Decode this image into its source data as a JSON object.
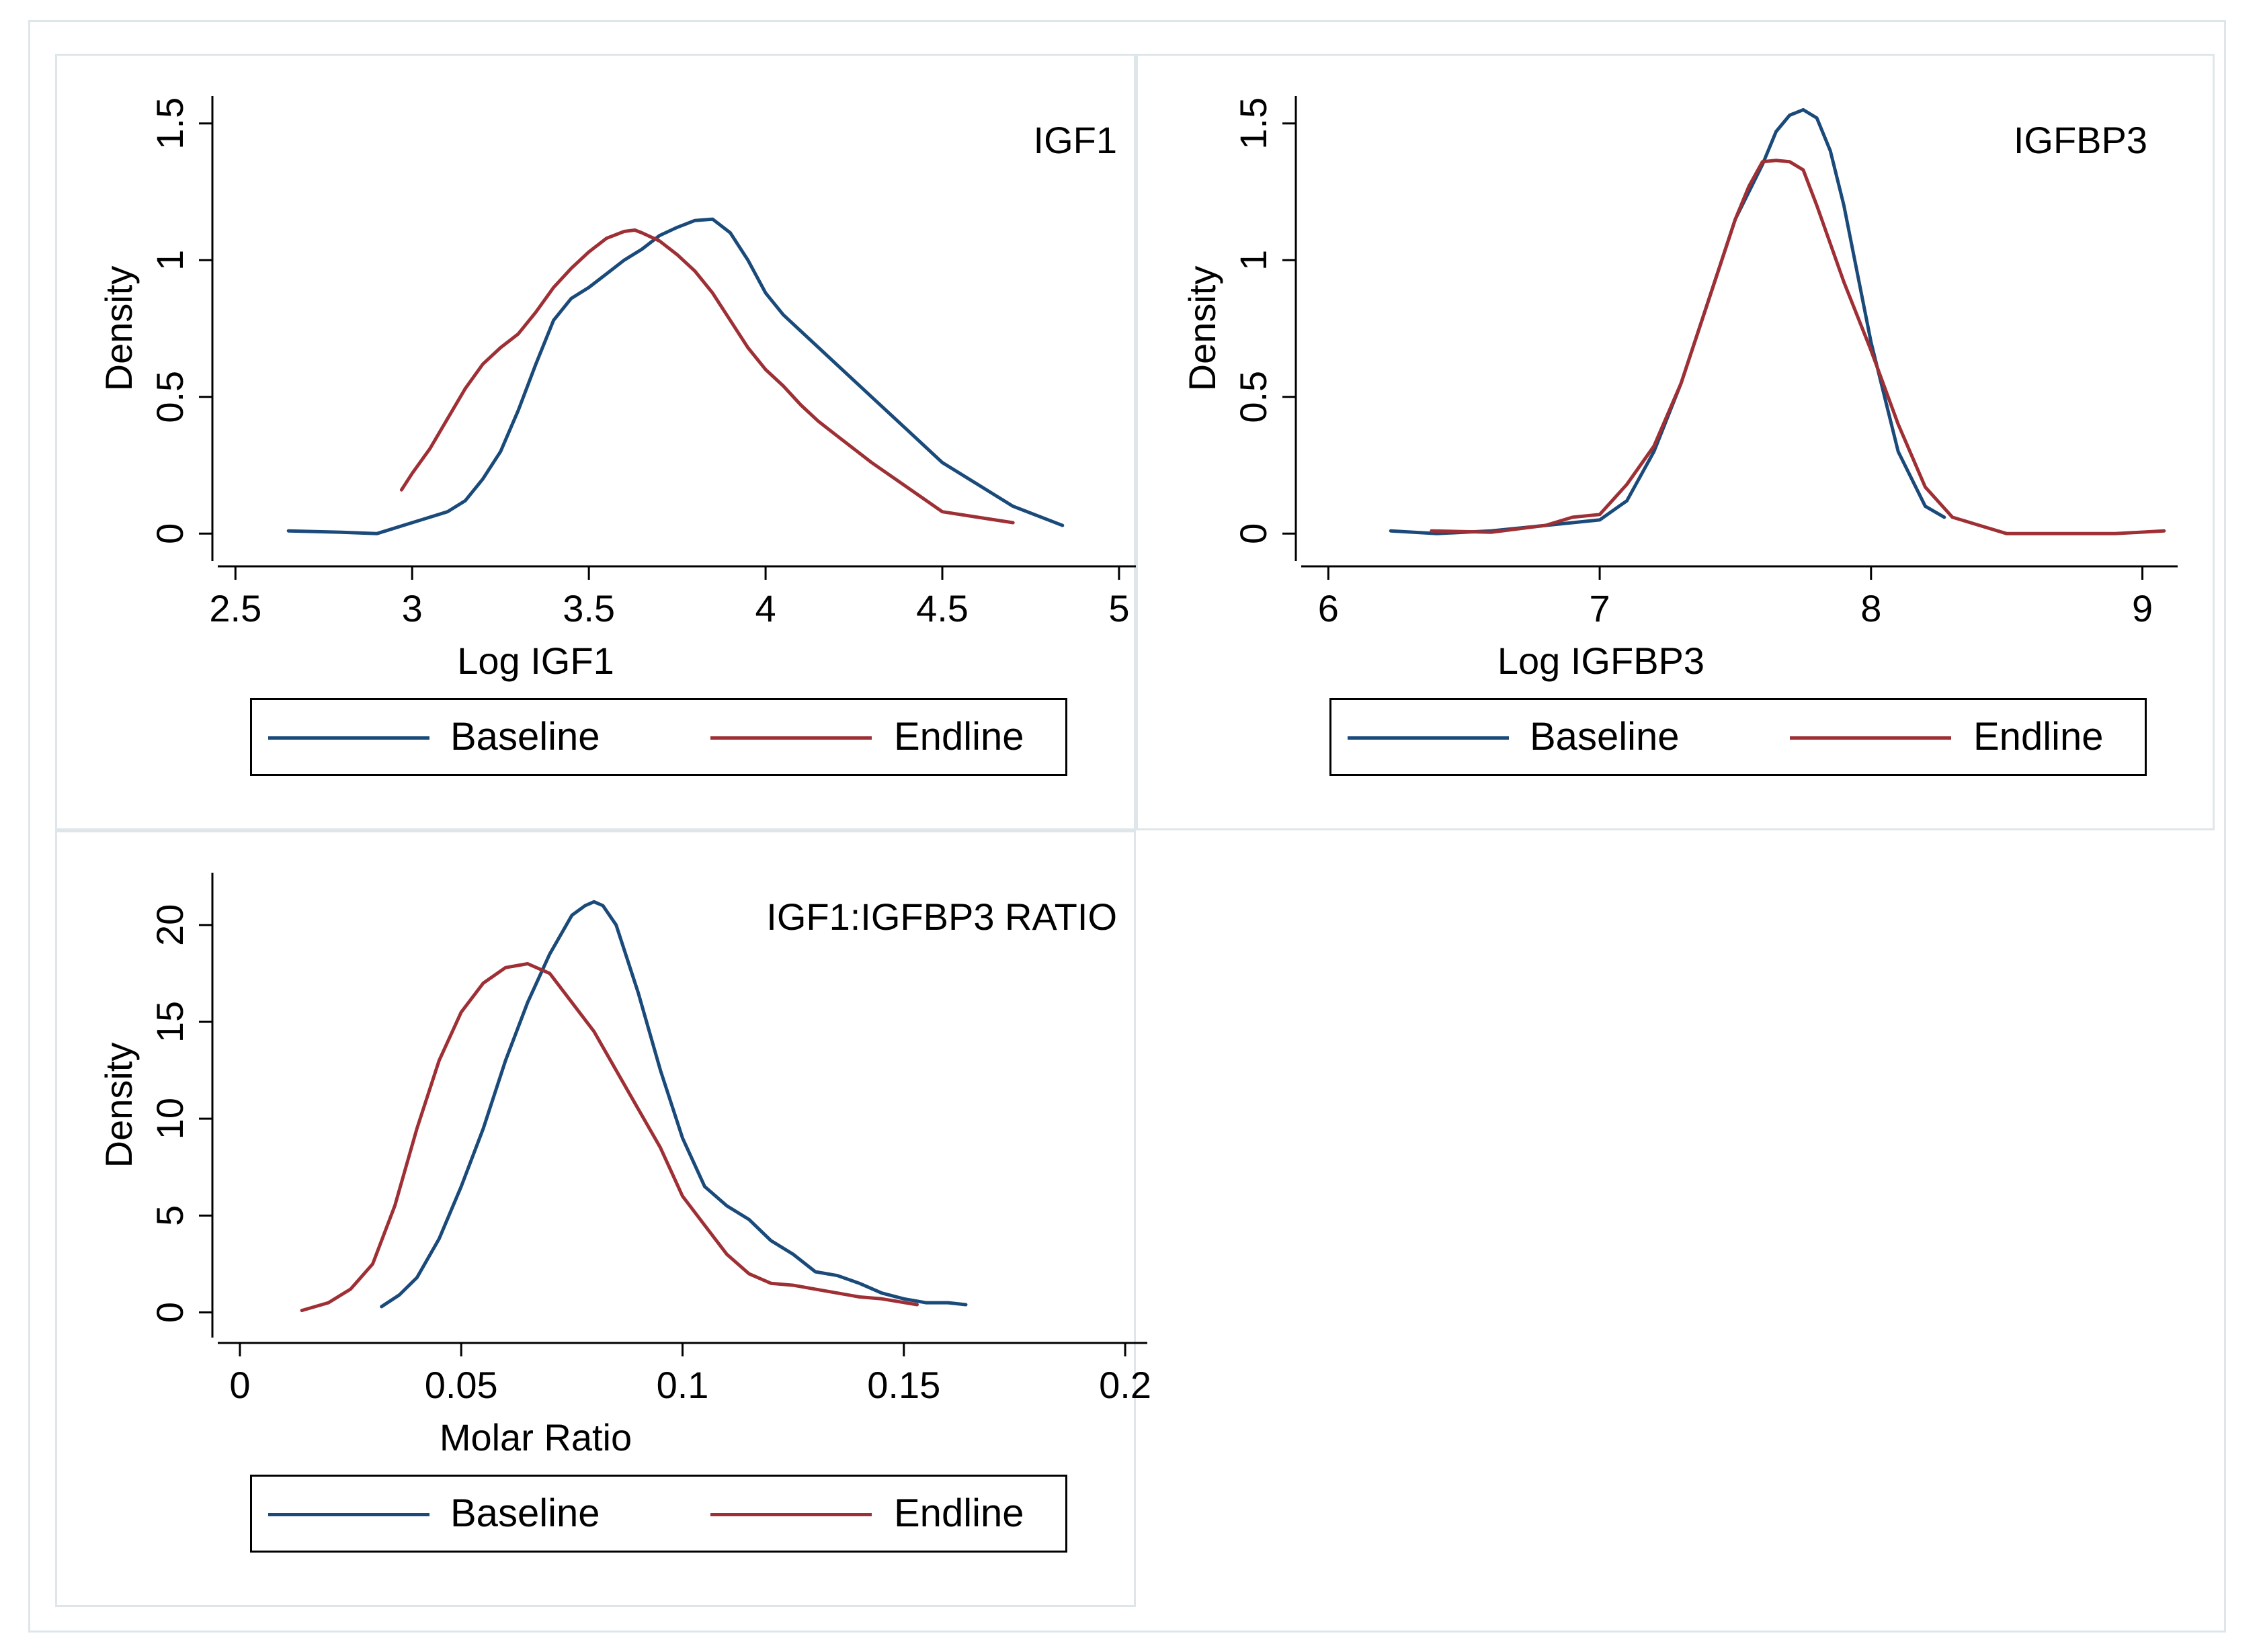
{
  "colors": {
    "baseline": "#1a4a7a",
    "endline": "#9e3035",
    "axis": "#000000",
    "frame": "#dfe6ea"
  },
  "legend": {
    "baseline_label": "Baseline",
    "endline_label": "Endline"
  },
  "chart_data": [
    {
      "type": "line",
      "panel_title": "IGF1",
      "xlabel": "Log IGF1",
      "ylabel": "Density",
      "xlim": [
        2.45,
        5.08
      ],
      "ylim": [
        -0.1,
        1.6
      ],
      "x_ticks": [
        "2.5",
        "3",
        "3.5",
        "4",
        "4.5",
        "5"
      ],
      "y_ticks": [
        "0",
        "0.5",
        "1",
        "1.5"
      ],
      "series": [
        {
          "name": "Baseline",
          "x": [
            2.65,
            2.8,
            2.9,
            3.0,
            3.1,
            3.15,
            3.2,
            3.25,
            3.3,
            3.35,
            3.4,
            3.45,
            3.5,
            3.55,
            3.6,
            3.65,
            3.7,
            3.75,
            3.8,
            3.85,
            3.9,
            3.95,
            4.0,
            4.05,
            4.1,
            4.15,
            4.2,
            4.3,
            4.4,
            4.5,
            4.6,
            4.7,
            4.8,
            4.84
          ],
          "y": [
            0.01,
            0.005,
            0.0,
            0.04,
            0.08,
            0.12,
            0.2,
            0.3,
            0.45,
            0.62,
            0.78,
            0.86,
            0.9,
            0.95,
            1.0,
            1.04,
            1.09,
            1.12,
            1.145,
            1.15,
            1.1,
            1.0,
            0.88,
            0.8,
            0.74,
            0.68,
            0.62,
            0.5,
            0.38,
            0.26,
            0.18,
            0.1,
            0.05,
            0.03
          ]
        },
        {
          "name": "Endline",
          "x": [
            2.97,
            3.0,
            3.05,
            3.1,
            3.15,
            3.2,
            3.25,
            3.3,
            3.35,
            3.4,
            3.45,
            3.5,
            3.55,
            3.6,
            3.63,
            3.65,
            3.7,
            3.75,
            3.8,
            3.85,
            3.9,
            3.95,
            4.0,
            4.05,
            4.1,
            4.15,
            4.2,
            4.3,
            4.4,
            4.5,
            4.6,
            4.7
          ],
          "y": [
            0.16,
            0.22,
            0.31,
            0.42,
            0.53,
            0.62,
            0.68,
            0.73,
            0.81,
            0.9,
            0.97,
            1.03,
            1.08,
            1.105,
            1.11,
            1.1,
            1.07,
            1.02,
            0.96,
            0.88,
            0.78,
            0.68,
            0.6,
            0.54,
            0.47,
            0.41,
            0.36,
            0.26,
            0.17,
            0.08,
            0.06,
            0.04
          ]
        }
      ]
    },
    {
      "type": "line",
      "panel_title": "IGFBP3",
      "xlabel": "Log IGFBP3",
      "ylabel": "Density",
      "xlim": [
        5.9,
        9.13
      ],
      "ylim": [
        -0.1,
        1.6
      ],
      "x_ticks": [
        "6",
        "7",
        "8",
        "9"
      ],
      "y_ticks": [
        "0",
        "0.5",
        "1",
        "1.5"
      ],
      "series": [
        {
          "name": "Baseline",
          "x": [
            6.23,
            6.4,
            6.6,
            6.8,
            6.9,
            7.0,
            7.1,
            7.2,
            7.3,
            7.4,
            7.5,
            7.6,
            7.65,
            7.7,
            7.75,
            7.8,
            7.85,
            7.9,
            8.0,
            8.1,
            8.2,
            8.27
          ],
          "y": [
            0.01,
            0.0,
            0.01,
            0.03,
            0.04,
            0.05,
            0.12,
            0.3,
            0.55,
            0.85,
            1.15,
            1.35,
            1.47,
            1.53,
            1.55,
            1.52,
            1.4,
            1.2,
            0.7,
            0.3,
            0.1,
            0.06
          ]
        },
        {
          "name": "Endline",
          "x": [
            6.38,
            6.6,
            6.8,
            6.9,
            7.0,
            7.1,
            7.2,
            7.3,
            7.4,
            7.5,
            7.55,
            7.6,
            7.65,
            7.7,
            7.75,
            7.8,
            7.9,
            8.0,
            8.1,
            8.2,
            8.3,
            8.4,
            8.5,
            8.7,
            8.9,
            9.08
          ],
          "y": [
            0.01,
            0.005,
            0.03,
            0.06,
            0.07,
            0.18,
            0.32,
            0.55,
            0.85,
            1.15,
            1.27,
            1.36,
            1.365,
            1.36,
            1.33,
            1.2,
            0.92,
            0.67,
            0.4,
            0.17,
            0.06,
            0.03,
            0.0,
            0.0,
            0.0,
            0.01
          ]
        }
      ]
    },
    {
      "type": "line",
      "panel_title": "IGF1:IGFBP3 RATIO",
      "xlabel": "Molar Ratio",
      "ylabel": "Density",
      "xlim": [
        -0.005,
        0.205
      ],
      "ylim": [
        -1.3,
        22.7
      ],
      "x_ticks": [
        "0",
        "0.05",
        "0.1",
        "0.15",
        "0.2"
      ],
      "y_ticks": [
        "0",
        "5",
        "10",
        "15",
        "20"
      ],
      "series": [
        {
          "name": "Baseline",
          "x": [
            0.032,
            0.036,
            0.04,
            0.045,
            0.05,
            0.055,
            0.06,
            0.065,
            0.07,
            0.075,
            0.078,
            0.08,
            0.082,
            0.085,
            0.09,
            0.095,
            0.1,
            0.105,
            0.11,
            0.115,
            0.12,
            0.125,
            0.13,
            0.135,
            0.14,
            0.145,
            0.15,
            0.155,
            0.16,
            0.164
          ],
          "y": [
            0.3,
            0.9,
            1.8,
            3.8,
            6.5,
            9.5,
            13.0,
            16.0,
            18.5,
            20.5,
            21.0,
            21.2,
            21.0,
            20.0,
            16.5,
            12.5,
            9.0,
            6.5,
            5.5,
            4.8,
            3.7,
            3.0,
            2.1,
            1.9,
            1.5,
            1.0,
            0.7,
            0.5,
            0.5,
            0.4
          ]
        },
        {
          "name": "Endline",
          "x": [
            0.014,
            0.02,
            0.025,
            0.03,
            0.035,
            0.04,
            0.045,
            0.05,
            0.055,
            0.06,
            0.065,
            0.07,
            0.075,
            0.08,
            0.085,
            0.09,
            0.095,
            0.1,
            0.105,
            0.11,
            0.115,
            0.12,
            0.125,
            0.13,
            0.135,
            0.14,
            0.145,
            0.153
          ],
          "y": [
            0.1,
            0.5,
            1.2,
            2.5,
            5.5,
            9.5,
            13.0,
            15.5,
            17.0,
            17.8,
            18.0,
            17.5,
            16.0,
            14.5,
            12.5,
            10.5,
            8.5,
            6.0,
            4.5,
            3.0,
            2.0,
            1.5,
            1.4,
            1.2,
            1.0,
            0.8,
            0.7,
            0.4
          ]
        }
      ]
    }
  ]
}
